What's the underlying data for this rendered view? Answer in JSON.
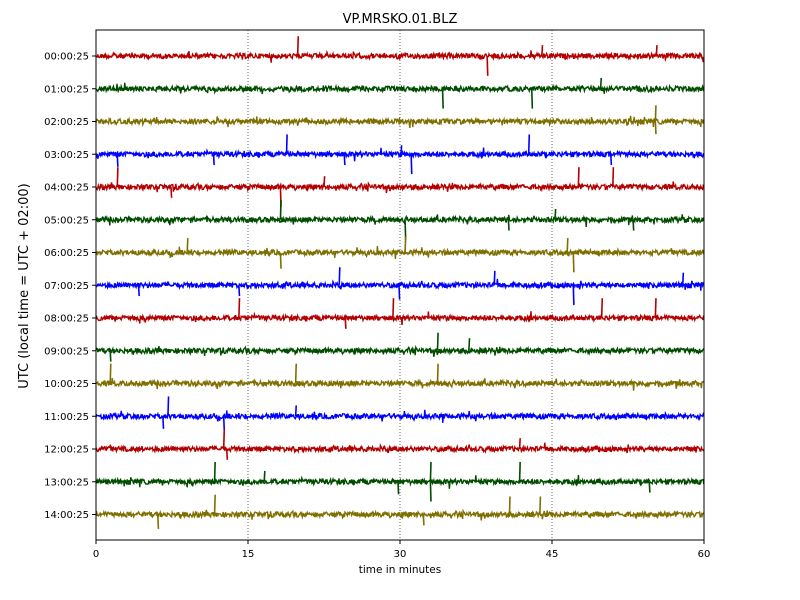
{
  "chart_data": {
    "type": "line",
    "title": "VP.MRSKO.01.BLZ",
    "xlabel": "time in minutes",
    "ylabel": "UTC (local time = UTC + 02:00)",
    "xlim": [
      0,
      60
    ],
    "x_ticks": [
      0,
      15,
      30,
      45,
      60
    ],
    "x_tick_labels": [
      "0",
      "15",
      "30",
      "45",
      "60"
    ],
    "grid": "vertical dotted lines at 15, 30, 45",
    "series": [
      {
        "name": "00:00:25",
        "color": "#b30000",
        "spikes": [
          {
            "x": 19.9,
            "a": 0.55
          },
          {
            "x": 38.6,
            "a": -0.55
          },
          {
            "x": 44.0,
            "a": 0.3
          },
          {
            "x": 55.3,
            "a": 0.3
          }
        ]
      },
      {
        "name": "01:00:25",
        "color": "#004d00",
        "spikes": [
          {
            "x": 34.2,
            "a": -0.55
          },
          {
            "x": 43.0,
            "a": -0.55
          },
          {
            "x": 49.8,
            "a": 0.3
          }
        ]
      },
      {
        "name": "02:00:25",
        "color": "#7f6f00",
        "spikes": [
          {
            "x": 55.2,
            "a": 0.45
          },
          {
            "x": 55.2,
            "a": -0.35
          }
        ]
      },
      {
        "name": "03:00:25",
        "color": "#0000ff",
        "spikes": [
          {
            "x": 2.1,
            "a": -0.35
          },
          {
            "x": 11.6,
            "a": -0.3
          },
          {
            "x": 18.8,
            "a": 0.55
          },
          {
            "x": 24.5,
            "a": -0.3
          },
          {
            "x": 30.1,
            "a": 0.25
          },
          {
            "x": 31.1,
            "a": -0.55
          },
          {
            "x": 42.7,
            "a": 0.55
          },
          {
            "x": 50.8,
            "a": -0.3
          }
        ]
      },
      {
        "name": "04:00:25",
        "color": "#b30000",
        "spikes": [
          {
            "x": 2.1,
            "a": 0.55
          },
          {
            "x": 7.4,
            "a": -0.3
          },
          {
            "x": 18.2,
            "a": -0.55
          },
          {
            "x": 22.5,
            "a": 0.3
          },
          {
            "x": 47.6,
            "a": 0.55
          },
          {
            "x": 51.0,
            "a": 0.55
          }
        ]
      },
      {
        "name": "05:00:25",
        "color": "#004d00",
        "spikes": [
          {
            "x": 18.2,
            "a": 0.55
          },
          {
            "x": 30.5,
            "a": -0.55
          },
          {
            "x": 40.7,
            "a": -0.3
          },
          {
            "x": 45.3,
            "a": 0.3
          },
          {
            "x": 53.0,
            "a": -0.3
          }
        ]
      },
      {
        "name": "06:00:25",
        "color": "#7f6f00",
        "spikes": [
          {
            "x": 9.0,
            "a": 0.4
          },
          {
            "x": 18.2,
            "a": -0.45
          },
          {
            "x": 30.5,
            "a": 0.45
          },
          {
            "x": 46.5,
            "a": 0.4
          },
          {
            "x": 47.1,
            "a": -0.55
          }
        ]
      },
      {
        "name": "07:00:25",
        "color": "#0000ff",
        "spikes": [
          {
            "x": 4.2,
            "a": -0.3
          },
          {
            "x": 14.1,
            "a": -0.3
          },
          {
            "x": 24.0,
            "a": 0.5
          },
          {
            "x": 29.9,
            "a": -0.4
          },
          {
            "x": 39.3,
            "a": 0.4
          },
          {
            "x": 47.1,
            "a": -0.55
          },
          {
            "x": 57.9,
            "a": 0.35
          }
        ]
      },
      {
        "name": "08:00:25",
        "color": "#b30000",
        "spikes": [
          {
            "x": 14.1,
            "a": 0.55
          },
          {
            "x": 24.6,
            "a": -0.3
          },
          {
            "x": 29.3,
            "a": 0.55
          },
          {
            "x": 49.9,
            "a": 0.55
          },
          {
            "x": 55.2,
            "a": 0.55
          }
        ]
      },
      {
        "name": "09:00:25",
        "color": "#004d00",
        "spikes": [
          {
            "x": 33.7,
            "a": 0.5
          },
          {
            "x": 36.8,
            "a": 0.35
          },
          {
            "x": 1.4,
            "a": -0.3
          }
        ]
      },
      {
        "name": "10:00:25",
        "color": "#7f6f00",
        "spikes": [
          {
            "x": 1.4,
            "a": 0.55
          },
          {
            "x": 19.7,
            "a": 0.55
          },
          {
            "x": 33.7,
            "a": 0.55
          }
        ]
      },
      {
        "name": "11:00:25",
        "color": "#0000ff",
        "spikes": [
          {
            "x": 7.1,
            "a": 0.55
          },
          {
            "x": 6.6,
            "a": -0.35
          },
          {
            "x": 12.6,
            "a": -0.4
          },
          {
            "x": 19.7,
            "a": 0.3
          }
        ]
      },
      {
        "name": "12:00:25",
        "color": "#b30000",
        "spikes": [
          {
            "x": 12.6,
            "a": 0.55
          },
          {
            "x": 12.9,
            "a": -0.3
          },
          {
            "x": 41.8,
            "a": 0.3
          }
        ]
      },
      {
        "name": "13:00:25",
        "color": "#004d00",
        "spikes": [
          {
            "x": 11.7,
            "a": 0.55
          },
          {
            "x": 16.6,
            "a": 0.3
          },
          {
            "x": 33.0,
            "a": 0.55
          },
          {
            "x": 33.0,
            "a": -0.55
          },
          {
            "x": 41.8,
            "a": 0.55
          },
          {
            "x": 29.8,
            "a": -0.35
          },
          {
            "x": 54.6,
            "a": -0.3
          }
        ]
      },
      {
        "name": "14:00:25",
        "color": "#7f6f00",
        "spikes": [
          {
            "x": 11.7,
            "a": 0.55
          },
          {
            "x": 6.1,
            "a": -0.4
          },
          {
            "x": 32.3,
            "a": -0.3
          },
          {
            "x": 40.8,
            "a": 0.5
          },
          {
            "x": 43.8,
            "a": 0.5
          }
        ]
      }
    ]
  }
}
